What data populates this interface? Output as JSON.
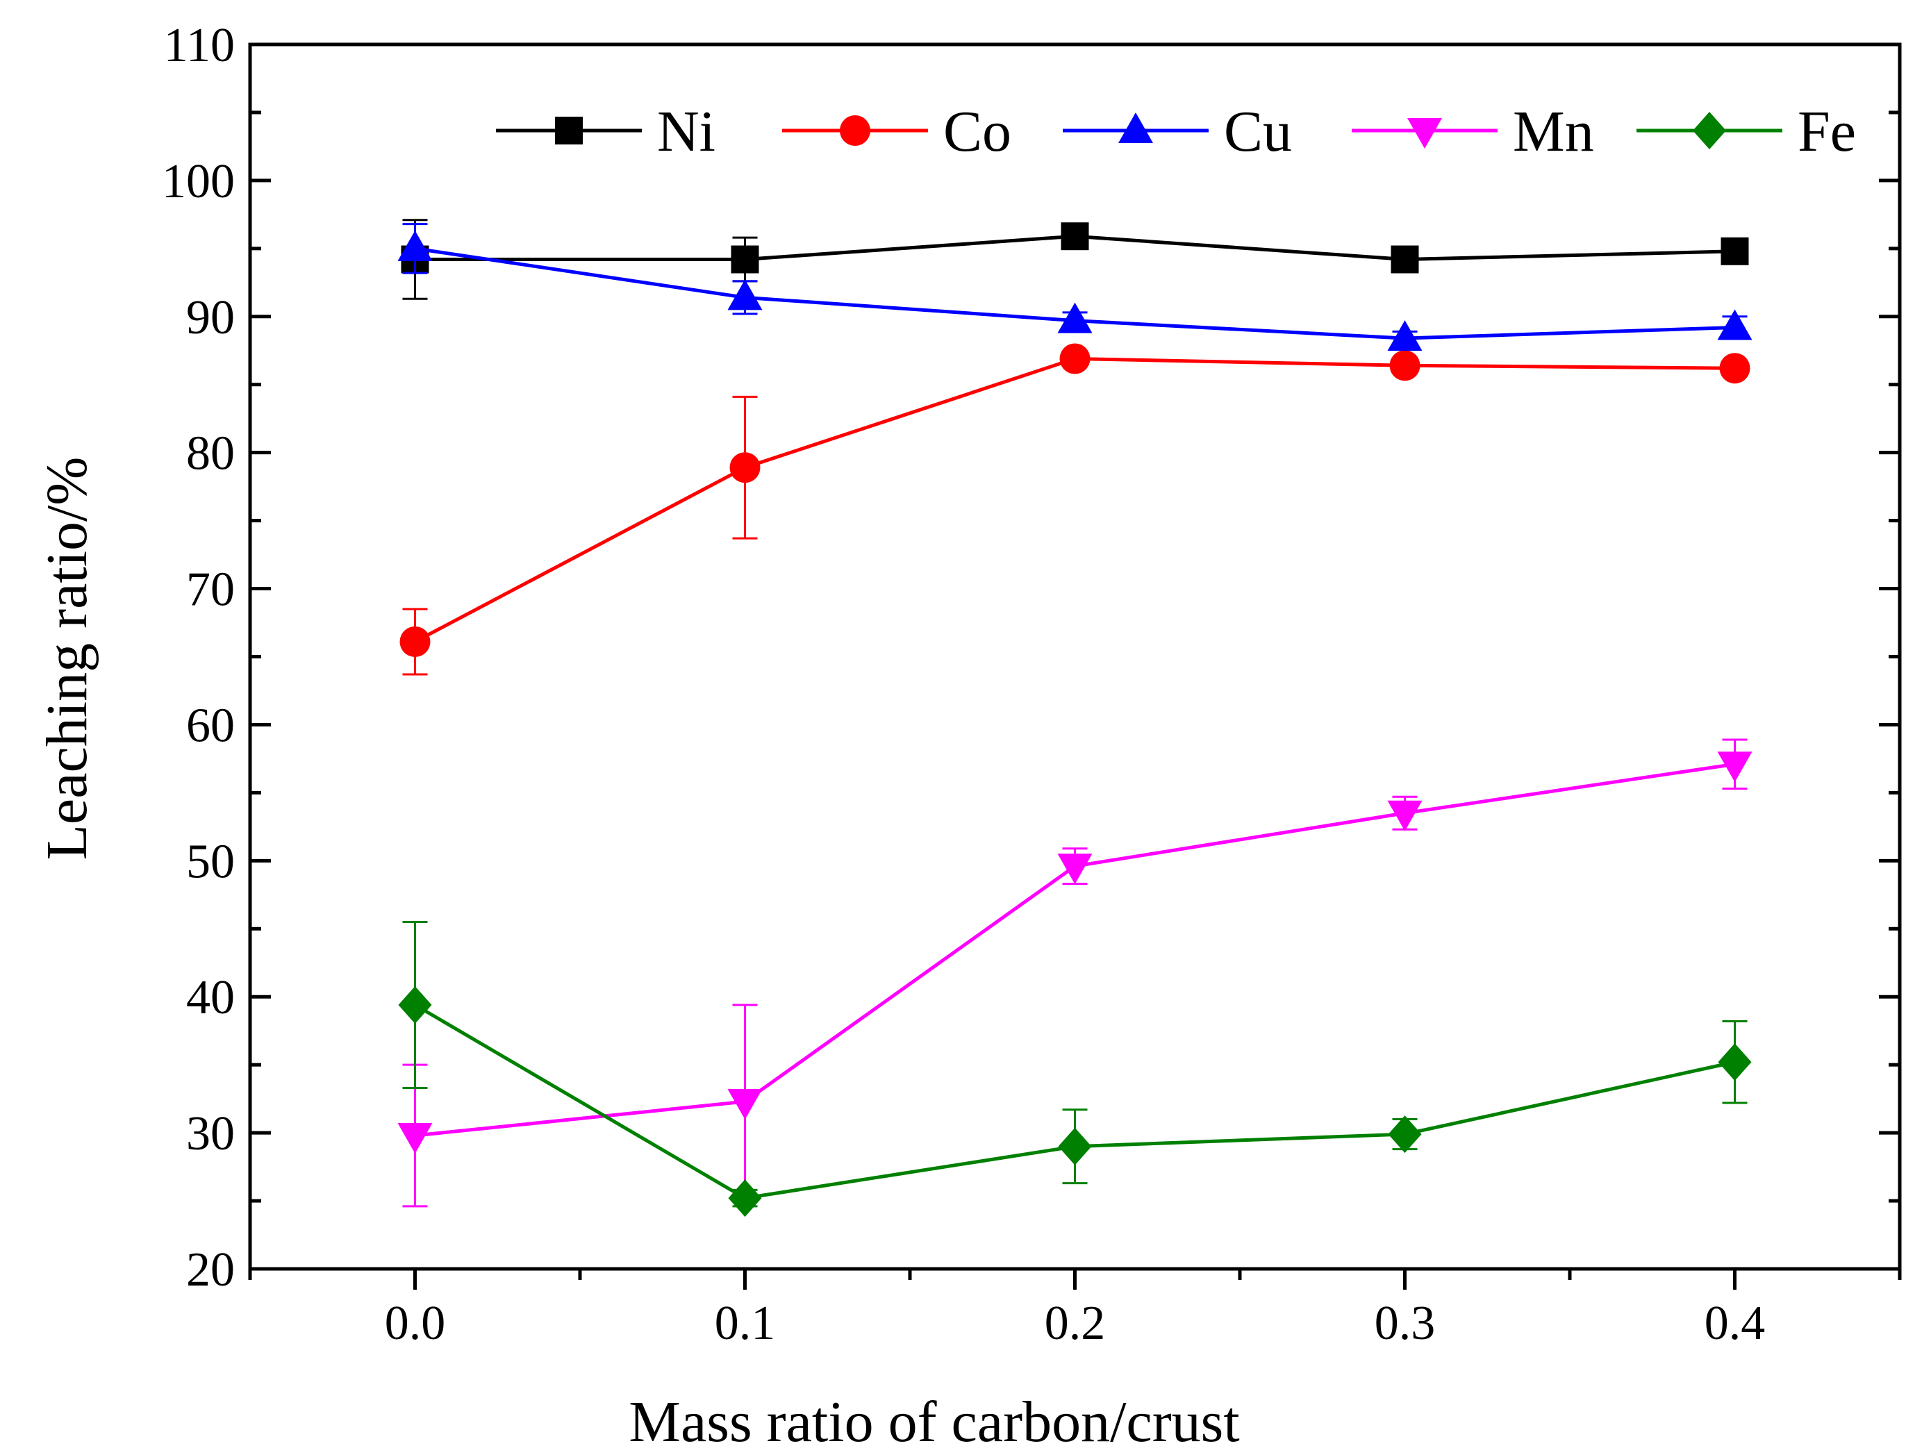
{
  "chart_data": {
    "type": "line",
    "xlabel": "Mass ratio of carbon/crust",
    "ylabel": "Leaching ratio/%",
    "xlim": [
      -0.05,
      0.45
    ],
    "ylim": [
      20,
      110
    ],
    "x": [
      0.0,
      0.1,
      0.2,
      0.3,
      0.4
    ],
    "xticks": [
      "0.0",
      "0.1",
      "0.2",
      "0.3",
      "0.4"
    ],
    "yticks": [
      "20",
      "30",
      "40",
      "50",
      "60",
      "70",
      "80",
      "90",
      "100",
      "110"
    ],
    "legend_position": "top",
    "series": [
      {
        "name": "Ni",
        "color": "#000000",
        "marker": "square",
        "values": [
          94.2,
          94.2,
          95.9,
          94.2,
          94.8
        ],
        "errors": [
          2.9,
          1.6,
          0.5,
          0.5,
          0.5
        ]
      },
      {
        "name": "Co",
        "color": "#ff0000",
        "marker": "circle",
        "values": [
          66.1,
          78.9,
          86.9,
          86.4,
          86.2
        ],
        "errors": [
          2.4,
          5.2,
          0.5,
          0.5,
          0.5
        ]
      },
      {
        "name": "Cu",
        "color": "#0000ff",
        "marker": "triangle-up",
        "values": [
          95.0,
          91.4,
          89.7,
          88.4,
          89.2
        ],
        "errors": [
          1.8,
          1.2,
          0.6,
          0.5,
          0.8
        ]
      },
      {
        "name": "Mn",
        "color": "#ff00ff",
        "marker": "triangle-down",
        "values": [
          29.8,
          32.3,
          49.6,
          53.5,
          57.1
        ],
        "errors": [
          5.2,
          7.1,
          1.3,
          1.2,
          1.8
        ]
      },
      {
        "name": "Fe",
        "color": "#008000",
        "marker": "diamond",
        "values": [
          39.4,
          25.2,
          29.0,
          29.9,
          35.2
        ],
        "errors": [
          6.1,
          0.6,
          2.7,
          1.1,
          3.0
        ]
      }
    ]
  }
}
